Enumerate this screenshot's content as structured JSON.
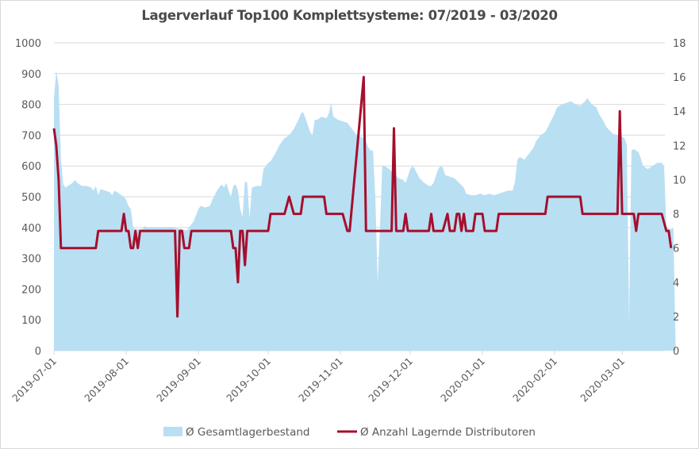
{
  "chart_data": {
    "type": "area+line",
    "title": "Lagerverlauf Top100 Komplettsysteme: 07/2019 - 03/2020",
    "x_start_date": "2019-07-01",
    "x_unit": "days since 2019-07-01",
    "x_range": [
      0,
      262
    ],
    "x_tick_labels": [
      "2019-07-01",
      "2019-08-01",
      "2019-09-01",
      "2019-10-01",
      "2019-11-01",
      "2019-12-01",
      "2020-01-01",
      "2020-02-01",
      "2020-03-01"
    ],
    "x_tick_days": [
      0,
      31,
      62,
      92,
      123,
      153,
      184,
      215,
      244
    ],
    "y_left": {
      "range": [
        0,
        1000
      ],
      "ticks": [
        0,
        100,
        200,
        300,
        400,
        500,
        600,
        700,
        800,
        900,
        1000
      ]
    },
    "y_right": {
      "range": [
        0,
        18
      ],
      "ticks": [
        0,
        2,
        4,
        6,
        8,
        10,
        12,
        14,
        16,
        18
      ]
    },
    "grid": true,
    "legend_position": "bottom",
    "colors": {
      "area": "#b9dff3",
      "line": "#a50f2d",
      "grid": "#d9d9d9",
      "text": "#595959"
    },
    "series": [
      {
        "name": "Ø Gesamtlagerbestand",
        "type": "area",
        "axis": "left",
        "points": [
          [
            0,
            820
          ],
          [
            1,
            910
          ],
          [
            2,
            860
          ],
          [
            3,
            620
          ],
          [
            4,
            540
          ],
          [
            5,
            530
          ],
          [
            6,
            535
          ],
          [
            7,
            540
          ],
          [
            8,
            545
          ],
          [
            9,
            555
          ],
          [
            10,
            545
          ],
          [
            11,
            540
          ],
          [
            12,
            535
          ],
          [
            14,
            535
          ],
          [
            16,
            530
          ],
          [
            17,
            520
          ],
          [
            18,
            535
          ],
          [
            19,
            505
          ],
          [
            20,
            525
          ],
          [
            22,
            520
          ],
          [
            24,
            515
          ],
          [
            25,
            505
          ],
          [
            26,
            520
          ],
          [
            28,
            510
          ],
          [
            30,
            500
          ],
          [
            31,
            490
          ],
          [
            32,
            470
          ],
          [
            33,
            460
          ],
          [
            34,
            400
          ],
          [
            35,
            395
          ],
          [
            38,
            395
          ],
          [
            39,
            405
          ],
          [
            40,
            400
          ],
          [
            45,
            400
          ],
          [
            50,
            400
          ],
          [
            55,
            395
          ],
          [
            57,
            390
          ],
          [
            58,
            400
          ],
          [
            60,
            420
          ],
          [
            62,
            460
          ],
          [
            63,
            470
          ],
          [
            65,
            465
          ],
          [
            67,
            470
          ],
          [
            68,
            490
          ],
          [
            70,
            520
          ],
          [
            72,
            540
          ],
          [
            73,
            530
          ],
          [
            74,
            545
          ],
          [
            75,
            520
          ],
          [
            76,
            500
          ],
          [
            77,
            535
          ],
          [
            78,
            540
          ],
          [
            79,
            520
          ],
          [
            80,
            460
          ],
          [
            81,
            435
          ],
          [
            82,
            550
          ],
          [
            83,
            545
          ],
          [
            84,
            430
          ],
          [
            85,
            530
          ],
          [
            87,
            535
          ],
          [
            89,
            535
          ],
          [
            90,
            590
          ],
          [
            92,
            610
          ],
          [
            93,
            615
          ],
          [
            95,
            640
          ],
          [
            97,
            670
          ],
          [
            99,
            690
          ],
          [
            101,
            700
          ],
          [
            103,
            720
          ],
          [
            105,
            750
          ],
          [
            106,
            770
          ],
          [
            107,
            775
          ],
          [
            108,
            755
          ],
          [
            110,
            710
          ],
          [
            111,
            700
          ],
          [
            112,
            750
          ],
          [
            113,
            750
          ],
          [
            115,
            760
          ],
          [
            117,
            755
          ],
          [
            118,
            770
          ],
          [
            119,
            805
          ],
          [
            120,
            760
          ],
          [
            122,
            750
          ],
          [
            124,
            745
          ],
          [
            126,
            740
          ],
          [
            128,
            720
          ],
          [
            130,
            700
          ],
          [
            132,
            695
          ],
          [
            134,
            680
          ],
          [
            135,
            660
          ],
          [
            136,
            650
          ],
          [
            137,
            650
          ],
          [
            138,
            500
          ],
          [
            139,
            220
          ],
          [
            140,
            400
          ],
          [
            141,
            600
          ],
          [
            142,
            600
          ],
          [
            144,
            590
          ],
          [
            146,
            575
          ],
          [
            148,
            560
          ],
          [
            150,
            555
          ],
          [
            151,
            545
          ],
          [
            153,
            590
          ],
          [
            154,
            600
          ],
          [
            155,
            590
          ],
          [
            157,
            560
          ],
          [
            159,
            545
          ],
          [
            161,
            535
          ],
          [
            162,
            535
          ],
          [
            163,
            545
          ],
          [
            165,
            590
          ],
          [
            166,
            600
          ],
          [
            167,
            595
          ],
          [
            168,
            570
          ],
          [
            170,
            565
          ],
          [
            172,
            560
          ],
          [
            174,
            545
          ],
          [
            176,
            530
          ],
          [
            177,
            510
          ],
          [
            179,
            505
          ],
          [
            181,
            505
          ],
          [
            183,
            510
          ],
          [
            185,
            505
          ],
          [
            187,
            510
          ],
          [
            189,
            505
          ],
          [
            191,
            510
          ],
          [
            193,
            515
          ],
          [
            195,
            520
          ],
          [
            197,
            520
          ],
          [
            198,
            550
          ],
          [
            199,
            620
          ],
          [
            200,
            630
          ],
          [
            201,
            625
          ],
          [
            202,
            620
          ],
          [
            204,
            640
          ],
          [
            206,
            660
          ],
          [
            207,
            680
          ],
          [
            209,
            700
          ],
          [
            211,
            710
          ],
          [
            213,
            740
          ],
          [
            215,
            770
          ],
          [
            216,
            790
          ],
          [
            218,
            800
          ],
          [
            220,
            805
          ],
          [
            222,
            810
          ],
          [
            224,
            800
          ],
          [
            226,
            795
          ],
          [
            228,
            810
          ],
          [
            229,
            820
          ],
          [
            231,
            800
          ],
          [
            233,
            790
          ],
          [
            234,
            770
          ],
          [
            236,
            745
          ],
          [
            237,
            730
          ],
          [
            238,
            720
          ],
          [
            240,
            705
          ],
          [
            242,
            700
          ],
          [
            244,
            695
          ],
          [
            245,
            690
          ],
          [
            246,
            670
          ],
          [
            247,
            100
          ],
          [
            248,
            650
          ],
          [
            249,
            655
          ],
          [
            251,
            645
          ],
          [
            252,
            625
          ],
          [
            253,
            600
          ],
          [
            255,
            590
          ],
          [
            257,
            600
          ],
          [
            259,
            610
          ],
          [
            261,
            610
          ],
          [
            262,
            600
          ],
          [
            263,
            400
          ],
          [
            265,
            395
          ],
          [
            266,
            400
          ],
          [
            267,
            0
          ]
        ]
      },
      {
        "name": "Ø Anzahl Lagernde Distributoren",
        "type": "line",
        "axis": "right",
        "points": [
          [
            0,
            13
          ],
          [
            1,
            12
          ],
          [
            2,
            10
          ],
          [
            3,
            6
          ],
          [
            4,
            6
          ],
          [
            18,
            6
          ],
          [
            19,
            7
          ],
          [
            29,
            7
          ],
          [
            30,
            8
          ],
          [
            31,
            7
          ],
          [
            32,
            7
          ],
          [
            33,
            6
          ],
          [
            34,
            6
          ],
          [
            35,
            7
          ],
          [
            36,
            6
          ],
          [
            37,
            7
          ],
          [
            52,
            7
          ],
          [
            53,
            2
          ],
          [
            54,
            7
          ],
          [
            55,
            7
          ],
          [
            56,
            6
          ],
          [
            58,
            6
          ],
          [
            59,
            7
          ],
          [
            76,
            7
          ],
          [
            77,
            6
          ],
          [
            78,
            6
          ],
          [
            79,
            4
          ],
          [
            80,
            7
          ],
          [
            81,
            7
          ],
          [
            82,
            5
          ],
          [
            83,
            7
          ],
          [
            92,
            7
          ],
          [
            93,
            8
          ],
          [
            99,
            8
          ],
          [
            101,
            9
          ],
          [
            103,
            8
          ],
          [
            106,
            8
          ],
          [
            107,
            9
          ],
          [
            116,
            9
          ],
          [
            117,
            8
          ],
          [
            124,
            8
          ],
          [
            126,
            7
          ],
          [
            127,
            7
          ],
          [
            133,
            16
          ],
          [
            134,
            7
          ],
          [
            145,
            7
          ],
          [
            146,
            13
          ],
          [
            147,
            7
          ],
          [
            150,
            7
          ],
          [
            151,
            8
          ],
          [
            152,
            7
          ],
          [
            161,
            7
          ],
          [
            162,
            8
          ],
          [
            163,
            7
          ],
          [
            167,
            7
          ],
          [
            169,
            8
          ],
          [
            170,
            7
          ],
          [
            172,
            7
          ],
          [
            173,
            8
          ],
          [
            174,
            8
          ],
          [
            175,
            7
          ],
          [
            176,
            8
          ],
          [
            177,
            7
          ],
          [
            180,
            7
          ],
          [
            181,
            8
          ],
          [
            184,
            8
          ],
          [
            185,
            7
          ],
          [
            190,
            7
          ],
          [
            191,
            8
          ],
          [
            211,
            8
          ],
          [
            212,
            9
          ],
          [
            226,
            9
          ],
          [
            227,
            8
          ],
          [
            242,
            8
          ],
          [
            243,
            14
          ],
          [
            244,
            8
          ],
          [
            249,
            8
          ],
          [
            250,
            7
          ],
          [
            251,
            8
          ],
          [
            261,
            8
          ],
          [
            263,
            7
          ],
          [
            264,
            7
          ],
          [
            265,
            6
          ]
        ]
      }
    ]
  }
}
